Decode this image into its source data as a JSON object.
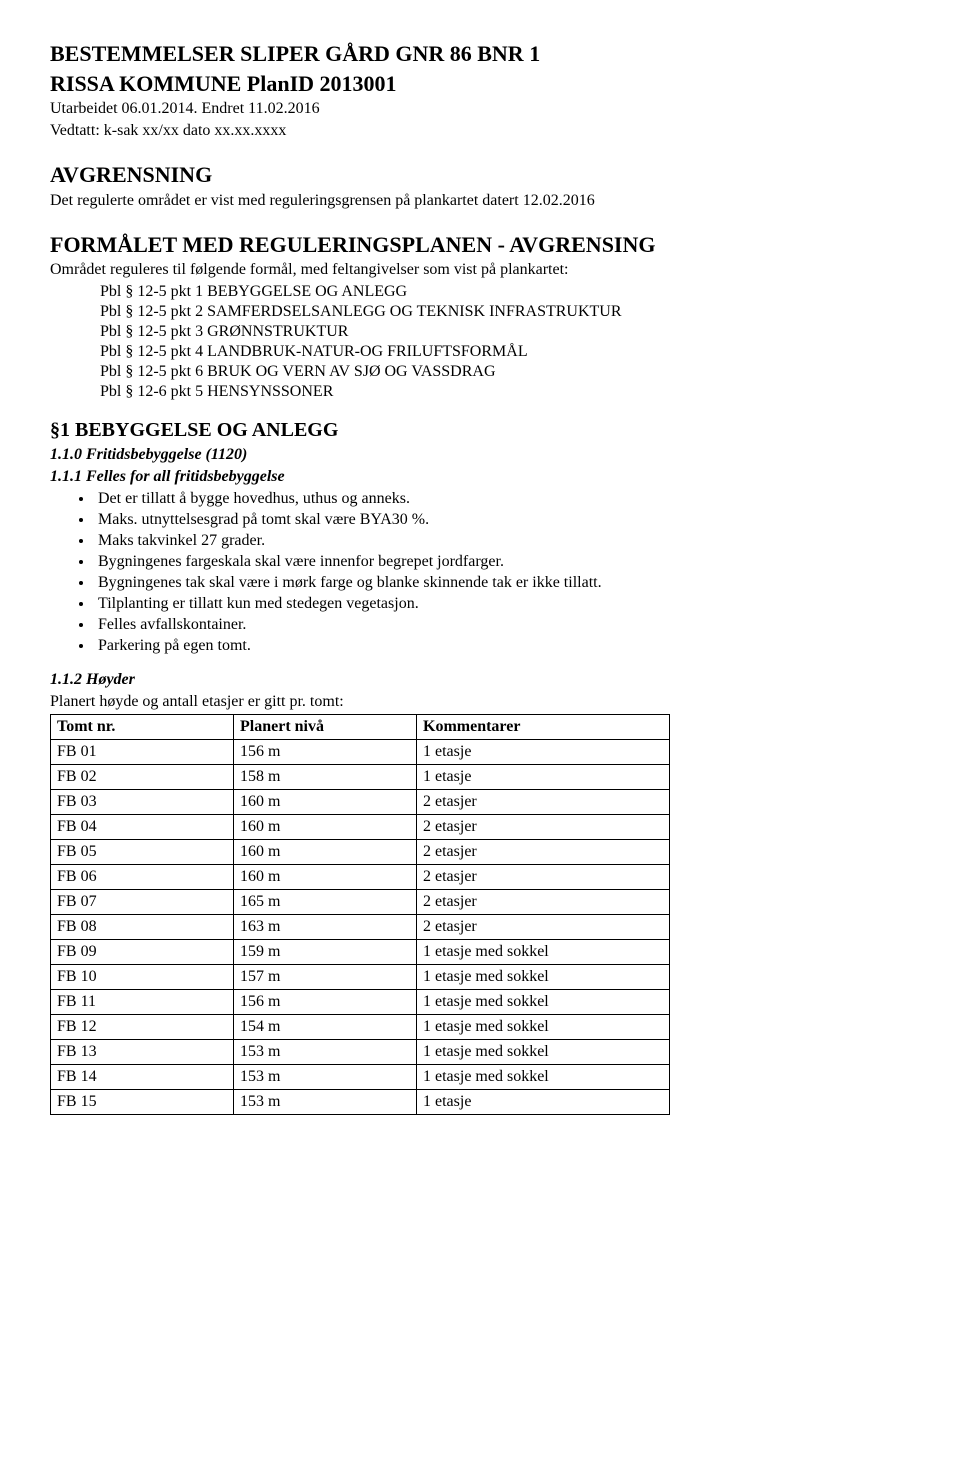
{
  "title_line1": "BESTEMMELSER SLIPER GÅRD GNR 86 BNR 1",
  "title_line2": "RISSA KOMMUNE PlanID 2013001",
  "sub1": "Utarbeidet 06.01.2014. Endret 11.02.2016",
  "sub2": "Vedtatt: k-sak xx/xx dato xx.xx.xxxx",
  "avgrensning": {
    "heading": "AVGRENSNING",
    "text": "Det regulerte området er vist med reguleringsgrensen på plankartet datert 12.02.2016"
  },
  "formalet": {
    "heading": "FORMÅLET MED REGULERINGSPLANEN - AVGRENSING",
    "intro": "Området reguleres til følgende formål, med feltangivelser som vist på plankartet:",
    "items": [
      "Pbl § 12-5 pkt 1 BEBYGGELSE OG ANLEGG",
      "Pbl § 12-5 pkt 2 SAMFERDSELSANLEGG OG TEKNISK INFRASTRUKTUR",
      "Pbl § 12-5 pkt 3 GRØNNSTRUKTUR",
      "Pbl § 12-5 pkt 4 LANDBRUK-NATUR-OG FRILUFTSFORMÅL",
      "Pbl § 12-5 pkt 6 BRUK OG VERN AV SJØ OG VASSDRAG",
      "Pbl § 12-6 pkt 5 HENSYNSSONER"
    ]
  },
  "section1": {
    "heading": "§1 BEBYGGELSE OG ANLEGG",
    "s110": "1.1.0   Fritidsbebyggelse (1120)",
    "s111": "1.1.1   Felles for all fritidsbebyggelse",
    "bullets": [
      "Det er tillatt å bygge hovedhus, uthus og anneks.",
      "Maks. utnyttelsesgrad på tomt skal være BYA30 %.",
      "Maks takvinkel 27 grader.",
      "Bygningenes fargeskala skal være innenfor begrepet jordfarger.",
      "Bygningenes tak skal være i mørk farge og blanke skinnende tak er ikke tillatt.",
      "Tilplanting er tillatt kun med stedegen vegetasjon.",
      "Felles avfallskontainer.",
      "Parkering på egen tomt."
    ],
    "s112": "1.1.2 Høyder",
    "table_intro": "Planert høyde og antall etasjer er gitt pr. tomt:",
    "columns": [
      "Tomt nr.",
      "Planert nivå",
      "Kommentarer"
    ],
    "rows": [
      [
        "FB 01",
        "156 m",
        "1 etasje"
      ],
      [
        "FB 02",
        "158 m",
        "1 etasje"
      ],
      [
        "FB 03",
        "160 m",
        "2 etasjer"
      ],
      [
        "FB 04",
        "160 m",
        "2 etasjer"
      ],
      [
        "FB 05",
        "160 m",
        "2 etasjer"
      ],
      [
        "FB 06",
        "160 m",
        "2 etasjer"
      ],
      [
        "FB 07",
        "165 m",
        "2 etasjer"
      ],
      [
        "FB 08",
        "163 m",
        "2 etasjer"
      ],
      [
        "FB 09",
        "159 m",
        "1 etasje med sokkel"
      ],
      [
        "FB 10",
        "157 m",
        "1 etasje med sokkel"
      ],
      [
        "FB 11",
        "156 m",
        "1 etasje med sokkel"
      ],
      [
        "FB 12",
        "154 m",
        "1 etasje med sokkel"
      ],
      [
        "FB 13",
        "153 m",
        "1 etasje med sokkel"
      ],
      [
        "FB 14",
        "153 m",
        "1 etasje med sokkel"
      ],
      [
        "FB 15",
        "153 m",
        "1 etasje"
      ]
    ]
  }
}
